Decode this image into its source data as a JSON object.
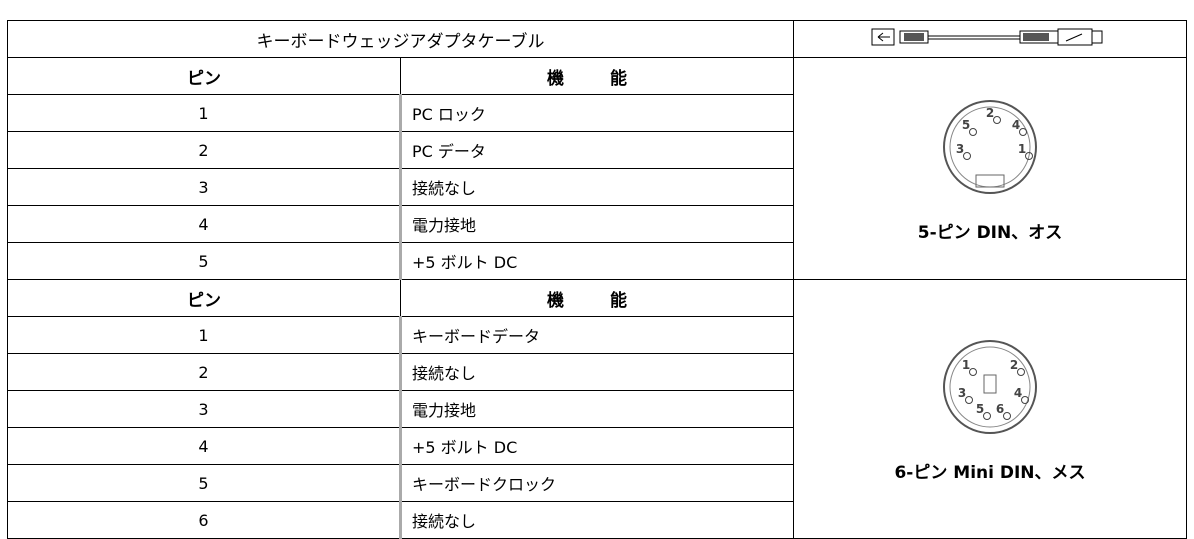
{
  "header": {
    "title": "キーボードウェッジアダプタケーブル"
  },
  "sections": [
    {
      "columns": [
        "ピン",
        "機 能"
      ],
      "rows": [
        [
          1,
          "PC ロック"
        ],
        [
          2,
          "PC データ"
        ],
        [
          3,
          "接続なし"
        ],
        [
          4,
          "電力接地"
        ],
        [
          5,
          "+5 ボルト DC"
        ]
      ],
      "connector": {
        "label": "5-ピン DIN、オス",
        "pins": [
          2,
          5,
          4,
          3,
          1
        ]
      }
    },
    {
      "columns": [
        "ピン",
        "機 能"
      ],
      "rows": [
        [
          1,
          "キーボードデータ"
        ],
        [
          2,
          "接続なし"
        ],
        [
          3,
          "電力接地"
        ],
        [
          4,
          "+5 ボルト DC"
        ],
        [
          5,
          "キーボードクロック"
        ],
        [
          6,
          "接続なし"
        ]
      ],
      "connector": {
        "label": "6-ピン Mini DIN、メス",
        "pins": [
          1,
          2,
          3,
          4,
          5,
          6
        ]
      }
    }
  ]
}
